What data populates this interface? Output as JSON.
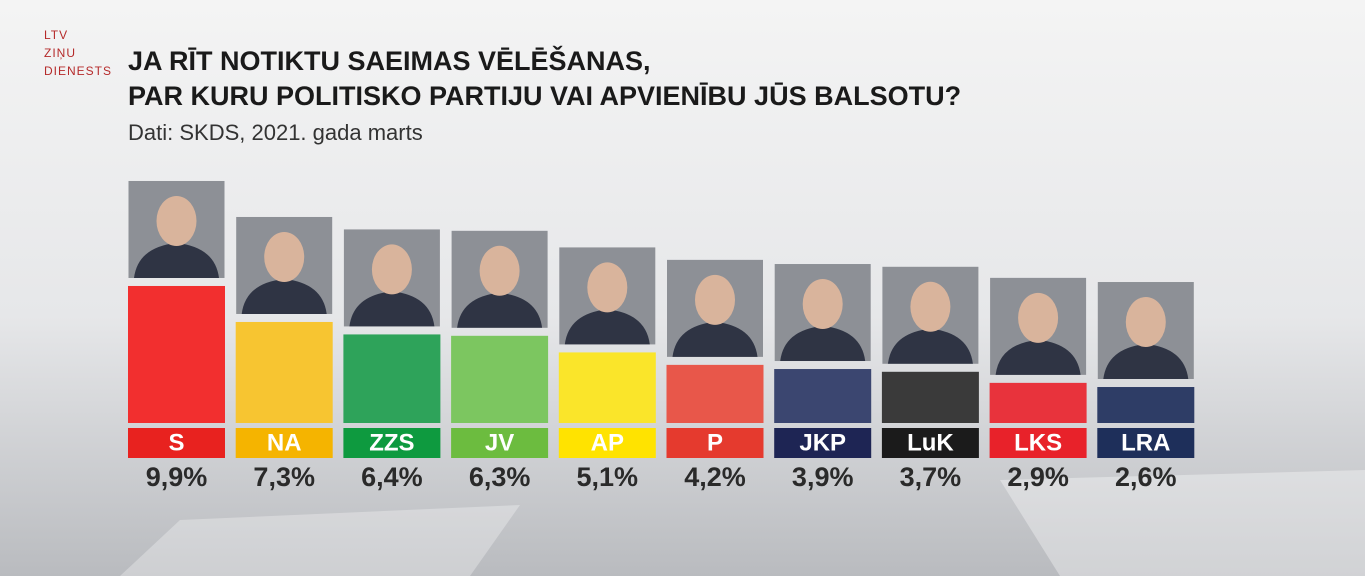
{
  "logo": [
    "LTV",
    "ZIŅU",
    "DIENESTS"
  ],
  "chart_data": {
    "type": "bar",
    "title": [
      "JA RĪT NOTIKTU SAEIMAS VĒLĒŠANAS,",
      "PAR KURU POLITISKO PARTIJU VAI APVIENĪBU JŪS BALSOTU?"
    ],
    "subtitle": "Dati: SKDS, 2021. gada marts",
    "categories": [
      "S",
      "NA",
      "ZZS",
      "JV",
      "AP",
      "P",
      "JKP",
      "LuK",
      "LKS",
      "LRA"
    ],
    "values": [
      9.9,
      7.3,
      6.4,
      6.3,
      5.1,
      4.2,
      3.9,
      3.7,
      2.9,
      2.6
    ],
    "value_labels": [
      "9,9%",
      "7,3%",
      "6,4%",
      "6,3%",
      "5,1%",
      "4,2%",
      "3,9%",
      "3,7%",
      "2,9%",
      "2,6%"
    ],
    "colors": [
      "#f22f2f",
      "#f7c531",
      "#2ea35a",
      "#7cc660",
      "#fae52a",
      "#e8574a",
      "#3b4670",
      "#3a3a3a",
      "#e8333c",
      "#2e3d66"
    ],
    "label_colors": [
      "#e8221f",
      "#f5b400",
      "#0e9a3f",
      "#6cbc3f",
      "#ffe300",
      "#e53a2e",
      "#1e2554",
      "#1b1b1b",
      "#e8222a",
      "#1e2f5a"
    ]
  }
}
